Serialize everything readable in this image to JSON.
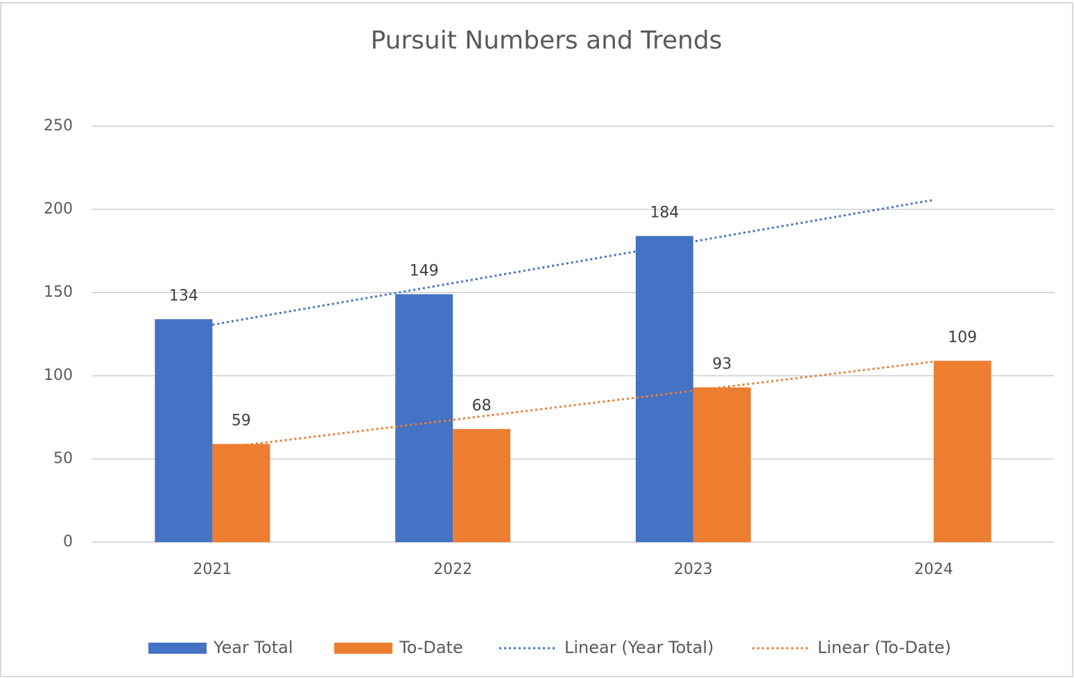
{
  "chart_data": {
    "type": "bar",
    "title": "Pursuit Numbers and Trends",
    "categories": [
      "2021",
      "2022",
      "2023",
      "2024"
    ],
    "series": [
      {
        "name": "Year Total",
        "type": "bar",
        "color": "#4472c4",
        "values": [
          134,
          149,
          184,
          null
        ]
      },
      {
        "name": "To-Date",
        "type": "bar",
        "color": "#ed7d31",
        "values": [
          59,
          68,
          93,
          109
        ]
      },
      {
        "name": "Linear (Year Total)",
        "type": "line",
        "style": "dotted",
        "color": "#4472c4",
        "values": [
          130.67,
          155.67,
          180.67,
          205.67
        ]
      },
      {
        "name": "Linear (To-Date)",
        "type": "line",
        "style": "dotted",
        "color": "#ed7d31",
        "values": [
          56,
          73.5,
          91,
          108.5
        ]
      }
    ],
    "ylim": [
      0,
      250
    ],
    "yticks": [
      0,
      50,
      100,
      150,
      200,
      250
    ],
    "grid": true,
    "legend": "bottom"
  }
}
